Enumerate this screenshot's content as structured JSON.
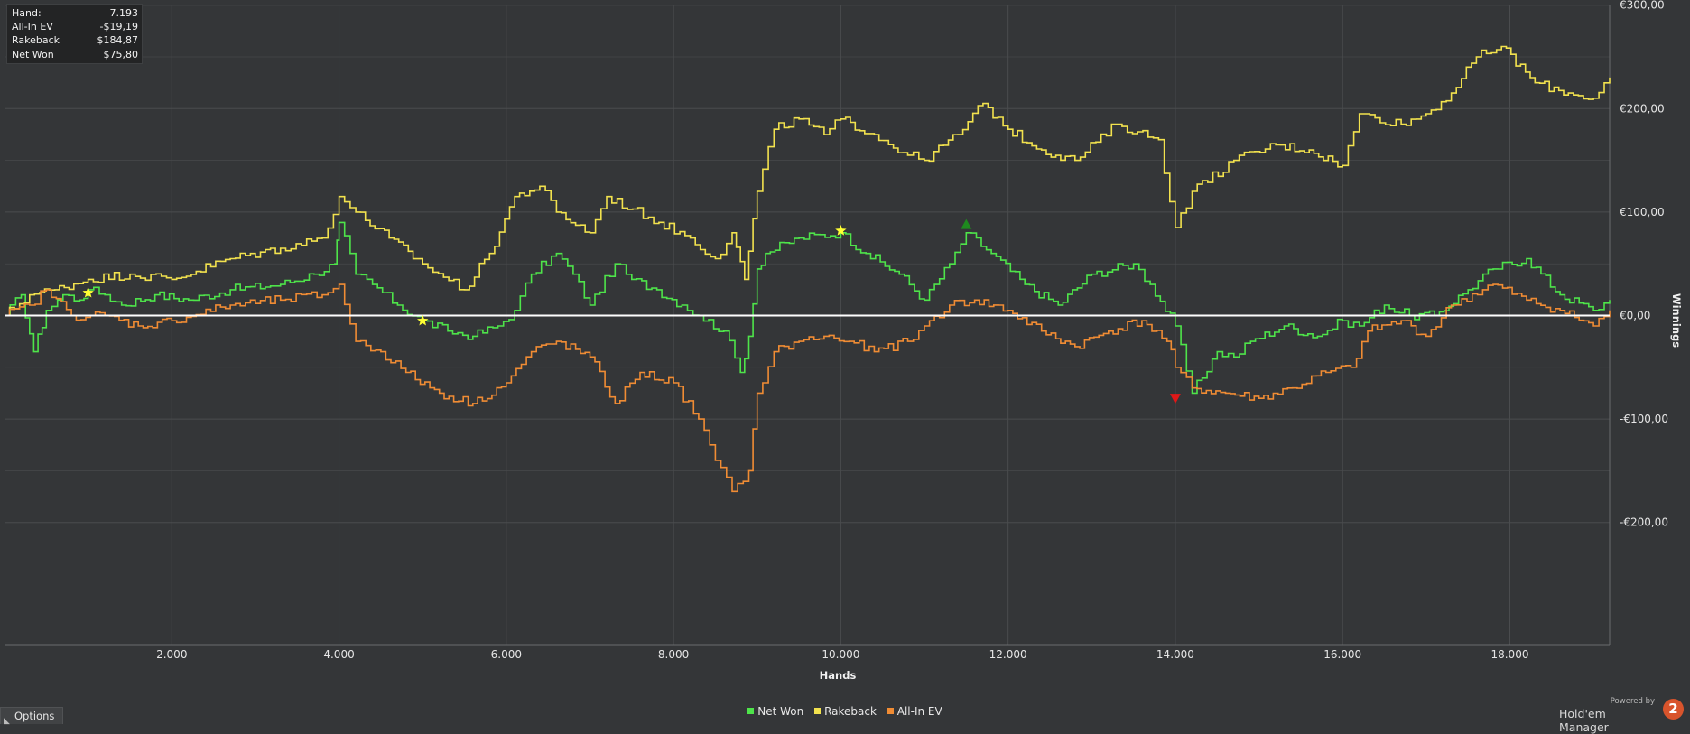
{
  "stats": {
    "rows": [
      {
        "label": "Hand:",
        "value": "7.193"
      },
      {
        "label": "All-In EV",
        "value": "-$19,19"
      },
      {
        "label": "Rakeback",
        "value": "$184,87"
      },
      {
        "label": "Net Won",
        "value": "$75,80"
      }
    ]
  },
  "options_label": "Options",
  "branding": {
    "powered": "Powered by",
    "name": "Hold'em Manager",
    "logo": "2"
  },
  "colors": {
    "background": "#343638",
    "grid": "#4a4c4e",
    "zero_line": "#ffffff",
    "net_won": "#4ee44a",
    "rakeback": "#f2e24e",
    "allin_ev": "#f08c34"
  },
  "chart_data": {
    "type": "line",
    "xlabel": "Hands",
    "ylabel": "Winnings",
    "xlim": [
      0,
      19193
    ],
    "ylim": [
      -220,
      300
    ],
    "x_ticks": [
      2000,
      4000,
      6000,
      8000,
      10000,
      12000,
      14000,
      16000,
      18000
    ],
    "x_tick_labels": [
      "2.000",
      "4.000",
      "6.000",
      "8.000",
      "10.000",
      "12.000",
      "14.000",
      "16.000",
      "18.000"
    ],
    "y_ticks": [
      300,
      200,
      100,
      0,
      -100,
      -200
    ],
    "y_tick_labels": [
      "€300,00",
      "€200,00",
      "€100,00",
      "€0,00",
      "-€100,00",
      "-€200,00"
    ],
    "grid": true,
    "legend_position": "bottom-center",
    "series": [
      {
        "name": "Net Won",
        "color": "#4ee44a",
        "x": [
          0,
          200,
          350,
          500,
          700,
          900,
          1000,
          1200,
          1400,
          1800,
          2200,
          2700,
          3300,
          3700,
          3950,
          4000,
          4200,
          4400,
          4700,
          5000,
          5300,
          5600,
          5900,
          6100,
          6300,
          6600,
          6800,
          7000,
          7300,
          7500,
          7800,
          8100,
          8300,
          8600,
          8800,
          8900,
          9000,
          9100,
          9500,
          10000,
          10300,
          10700,
          11000,
          11300,
          11500,
          11800,
          12200,
          12600,
          13000,
          13500,
          13700,
          14000,
          14200,
          14500,
          14700,
          14900,
          15300,
          15700,
          16000,
          16200,
          16500,
          16800,
          17100,
          17500,
          17800,
          18200,
          18600,
          19000,
          19193
        ],
        "y": [
          0,
          20,
          -35,
          5,
          20,
          15,
          25,
          20,
          10,
          20,
          15,
          25,
          30,
          40,
          50,
          90,
          40,
          30,
          10,
          -5,
          -15,
          -20,
          -10,
          5,
          40,
          60,
          40,
          10,
          50,
          35,
          25,
          10,
          0,
          -15,
          -55,
          -20,
          45,
          60,
          75,
          80,
          60,
          40,
          15,
          50,
          80,
          60,
          30,
          10,
          40,
          50,
          30,
          -10,
          -75,
          -35,
          -40,
          -25,
          -10,
          -20,
          -5,
          -10,
          10,
          0,
          0,
          25,
          45,
          55,
          20,
          5,
          15
        ],
        "markers": [
          {
            "x": 1000,
            "y": 22,
            "type": "star"
          },
          {
            "x": 5000,
            "y": -5,
            "type": "star"
          },
          {
            "x": 10000,
            "y": 82,
            "type": "star"
          },
          {
            "x": 11500,
            "y": 88,
            "type": "up"
          },
          {
            "x": 14000,
            "y": -80,
            "type": "down"
          }
        ]
      },
      {
        "name": "Rakeback",
        "color": "#f2e24e",
        "x": [
          0,
          300,
          600,
          1000,
          1500,
          2000,
          2700,
          3300,
          3800,
          4000,
          4200,
          4600,
          5000,
          5500,
          5800,
          6100,
          6400,
          6600,
          7000,
          7200,
          7700,
          8200,
          8500,
          8700,
          8850,
          9000,
          9200,
          9500,
          9800,
          10000,
          10400,
          10800,
          11000,
          11400,
          11700,
          12000,
          12400,
          12800,
          13300,
          13800,
          14000,
          14200,
          14700,
          15200,
          15600,
          16000,
          16200,
          16700,
          17000,
          17300,
          17600,
          17900,
          18300,
          18700,
          19000,
          19193
        ],
        "y": [
          0,
          20,
          25,
          35,
          40,
          35,
          55,
          65,
          75,
          115,
          100,
          75,
          50,
          25,
          60,
          115,
          125,
          100,
          80,
          115,
          95,
          75,
          55,
          80,
          35,
          120,
          180,
          190,
          175,
          190,
          175,
          155,
          150,
          175,
          205,
          180,
          160,
          150,
          185,
          170,
          85,
          120,
          150,
          165,
          160,
          145,
          195,
          185,
          195,
          215,
          250,
          260,
          225,
          215,
          210,
          230
        ]
      },
      {
        "name": "All-In EV",
        "color": "#f08c34",
        "x": [
          0,
          300,
          500,
          800,
          1200,
          1600,
          2000,
          2700,
          3300,
          3800,
          4000,
          4200,
          4500,
          4800,
          5200,
          5600,
          6000,
          6300,
          6600,
          7000,
          7300,
          7600,
          8000,
          8300,
          8500,
          8700,
          8900,
          9000,
          9200,
          9500,
          9800,
          10100,
          10400,
          10800,
          11000,
          11300,
          11600,
          12000,
          12400,
          12800,
          13200,
          13600,
          13900,
          14000,
          14200,
          14600,
          15000,
          15400,
          15800,
          16100,
          16300,
          16700,
          17000,
          17300,
          17800,
          18200,
          18600,
          19000,
          19193
        ],
        "y": [
          0,
          10,
          25,
          0,
          0,
          -10,
          -5,
          10,
          15,
          20,
          30,
          -25,
          -35,
          -55,
          -75,
          -85,
          -65,
          -35,
          -25,
          -40,
          -85,
          -55,
          -65,
          -100,
          -140,
          -170,
          -150,
          -75,
          -35,
          -25,
          -20,
          -25,
          -35,
          -25,
          -10,
          10,
          15,
          5,
          -15,
          -30,
          -15,
          -5,
          -25,
          -50,
          -70,
          -75,
          -80,
          -70,
          -55,
          -50,
          -15,
          -5,
          -20,
          10,
          30,
          15,
          5,
          -10,
          5
        ]
      }
    ]
  }
}
